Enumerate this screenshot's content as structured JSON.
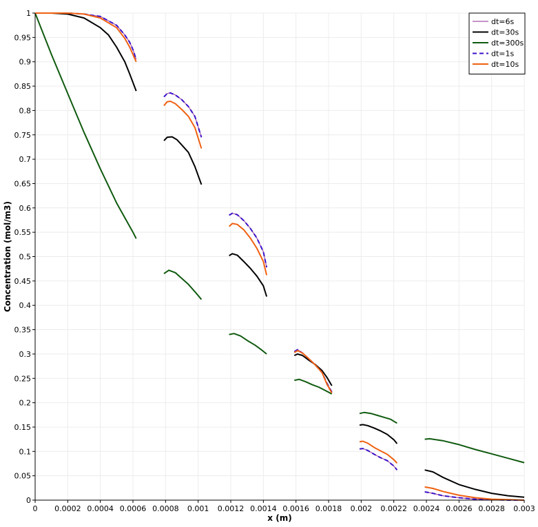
{
  "chart_data": {
    "type": "line",
    "xlabel": "x (m)",
    "ylabel": "Concentration (mol/m3)",
    "xlim": [
      0,
      0.003
    ],
    "ylim": [
      0,
      1
    ],
    "x_ticks": [
      "0",
      "0.0002",
      "0.0004",
      "0.0006",
      "0.0008",
      "0.001",
      "0.0012",
      "0.0014",
      "0.0016",
      "0.0018",
      "0.002",
      "0.0022",
      "0.0024",
      "0.0026",
      "0.0028",
      "0.003"
    ],
    "y_ticks": [
      "0",
      "0.05",
      "0.1",
      "0.15",
      "0.2",
      "0.25",
      "0.3",
      "0.35",
      "0.4",
      "0.45",
      "0.5",
      "0.55",
      "0.6",
      "0.65",
      "0.7",
      "0.75",
      "0.8",
      "0.85",
      "0.9",
      "0.95",
      "1"
    ],
    "grid": true,
    "legend_position": "top-right",
    "series": [
      {
        "name": "dt=6s",
        "color": "#a050a8",
        "style": "solid",
        "segments": [
          [
            [
              0,
              1
            ],
            [
              0.0002,
              1
            ],
            [
              0.0003,
              0.998
            ],
            [
              0.0004,
              0.993
            ],
            [
              0.0005,
              0.975
            ],
            [
              0.00055,
              0.955
            ],
            [
              0.00058,
              0.94
            ],
            [
              0.0006,
              0.925
            ],
            [
              0.00062,
              0.905
            ]
          ],
          [
            [
              0.00079,
              0.828
            ],
            [
              0.00081,
              0.835
            ],
            [
              0.00083,
              0.836
            ],
            [
              0.00086,
              0.832
            ],
            [
              0.0009,
              0.822
            ],
            [
              0.00094,
              0.808
            ],
            [
              0.00098,
              0.788
            ],
            [
              0.00102,
              0.745
            ]
          ],
          [
            [
              0.00119,
              0.585
            ],
            [
              0.00121,
              0.589
            ],
            [
              0.00124,
              0.586
            ],
            [
              0.00128,
              0.574
            ],
            [
              0.00132,
              0.558
            ],
            [
              0.00136,
              0.538
            ],
            [
              0.0014,
              0.51
            ],
            [
              0.00142,
              0.478
            ]
          ],
          [
            [
              0.00159,
              0.305
            ],
            [
              0.00161,
              0.309
            ],
            [
              0.00164,
              0.302
            ],
            [
              0.00168,
              0.29
            ],
            [
              0.00172,
              0.277
            ],
            [
              0.00176,
              0.262
            ],
            [
              0.00179,
              0.24
            ],
            [
              0.00182,
              0.222
            ]
          ],
          [
            [
              0.00199,
              0.105
            ],
            [
              0.00201,
              0.106
            ],
            [
              0.00204,
              0.102
            ],
            [
              0.00208,
              0.094
            ],
            [
              0.00212,
              0.087
            ],
            [
              0.00216,
              0.081
            ],
            [
              0.0022,
              0.07
            ],
            [
              0.00222,
              0.062
            ]
          ],
          [
            [
              0.00239,
              0.017
            ],
            [
              0.00244,
              0.014
            ],
            [
              0.0025,
              0.009
            ],
            [
              0.0026,
              0.005
            ],
            [
              0.0027,
              0.002
            ],
            [
              0.0028,
              0.001
            ],
            [
              0.0029,
              0
            ],
            [
              0.003,
              0
            ]
          ]
        ]
      },
      {
        "name": "dt=30s",
        "color": "#000000",
        "style": "solid",
        "segments": [
          [
            [
              0,
              1
            ],
            [
              0.0001,
              1
            ],
            [
              0.0002,
              0.998
            ],
            [
              0.0003,
              0.99
            ],
            [
              0.0004,
              0.97
            ],
            [
              0.00045,
              0.955
            ],
            [
              0.0005,
              0.93
            ],
            [
              0.00055,
              0.9
            ],
            [
              0.00058,
              0.875
            ],
            [
              0.00062,
              0.84
            ]
          ],
          [
            [
              0.00079,
              0.738
            ],
            [
              0.00081,
              0.745
            ],
            [
              0.00084,
              0.746
            ],
            [
              0.00087,
              0.74
            ],
            [
              0.0009,
              0.729
            ],
            [
              0.00094,
              0.714
            ],
            [
              0.00098,
              0.685
            ],
            [
              0.00102,
              0.648
            ]
          ],
          [
            [
              0.00119,
              0.502
            ],
            [
              0.00121,
              0.506
            ],
            [
              0.00124,
              0.503
            ],
            [
              0.00128,
              0.49
            ],
            [
              0.00132,
              0.476
            ],
            [
              0.00136,
              0.46
            ],
            [
              0.0014,
              0.44
            ],
            [
              0.00142,
              0.418
            ]
          ],
          [
            [
              0.00159,
              0.297
            ],
            [
              0.00161,
              0.3
            ],
            [
              0.00164,
              0.297
            ],
            [
              0.00168,
              0.287
            ],
            [
              0.00172,
              0.278
            ],
            [
              0.00176,
              0.266
            ],
            [
              0.00179,
              0.252
            ],
            [
              0.00182,
              0.235
            ]
          ],
          [
            [
              0.00199,
              0.154
            ],
            [
              0.00201,
              0.155
            ],
            [
              0.00204,
              0.153
            ],
            [
              0.00208,
              0.148
            ],
            [
              0.00212,
              0.142
            ],
            [
              0.00216,
              0.135
            ],
            [
              0.0022,
              0.124
            ],
            [
              0.00222,
              0.116
            ]
          ],
          [
            [
              0.00239,
              0.062
            ],
            [
              0.00244,
              0.058
            ],
            [
              0.0025,
              0.047
            ],
            [
              0.0026,
              0.032
            ],
            [
              0.0027,
              0.022
            ],
            [
              0.0028,
              0.014
            ],
            [
              0.0029,
              0.009
            ],
            [
              0.003,
              0.006
            ]
          ]
        ]
      },
      {
        "name": "dt=300s",
        "color": "#0f5a0f",
        "style": "solid",
        "segments": [
          [
            [
              0,
              1
            ],
            [
              0.0001,
              0.915
            ],
            [
              0.0002,
              0.835
            ],
            [
              0.0003,
              0.755
            ],
            [
              0.0004,
              0.68
            ],
            [
              0.0005,
              0.61
            ],
            [
              0.0006,
              0.55
            ],
            [
              0.00062,
              0.537
            ]
          ],
          [
            [
              0.00079,
              0.465
            ],
            [
              0.00082,
              0.472
            ],
            [
              0.00086,
              0.467
            ],
            [
              0.0009,
              0.455
            ],
            [
              0.00094,
              0.443
            ],
            [
              0.00098,
              0.428
            ],
            [
              0.00102,
              0.412
            ]
          ],
          [
            [
              0.00119,
              0.34
            ],
            [
              0.00122,
              0.342
            ],
            [
              0.00126,
              0.337
            ],
            [
              0.0013,
              0.328
            ],
            [
              0.00135,
              0.318
            ],
            [
              0.00139,
              0.308
            ],
            [
              0.00142,
              0.3
            ]
          ],
          [
            [
              0.00159,
              0.246
            ],
            [
              0.00162,
              0.248
            ],
            [
              0.00166,
              0.243
            ],
            [
              0.0017,
              0.237
            ],
            [
              0.00174,
              0.232
            ],
            [
              0.00178,
              0.225
            ],
            [
              0.00182,
              0.218
            ]
          ],
          [
            [
              0.00199,
              0.178
            ],
            [
              0.00202,
              0.18
            ],
            [
              0.00206,
              0.178
            ],
            [
              0.0021,
              0.174
            ],
            [
              0.00214,
              0.17
            ],
            [
              0.00218,
              0.166
            ],
            [
              0.00222,
              0.158
            ]
          ],
          [
            [
              0.00239,
              0.125
            ],
            [
              0.00242,
              0.126
            ],
            [
              0.0025,
              0.122
            ],
            [
              0.0026,
              0.114
            ],
            [
              0.0027,
              0.104
            ],
            [
              0.0028,
              0.095
            ],
            [
              0.0029,
              0.086
            ],
            [
              0.003,
              0.077
            ]
          ]
        ]
      },
      {
        "name": "dt=1s",
        "color": "#3a10c8",
        "style": "dashed",
        "segments": [
          [
            [
              0,
              1
            ],
            [
              0.0002,
              1
            ],
            [
              0.0003,
              0.998
            ],
            [
              0.0004,
              0.993
            ],
            [
              0.0005,
              0.975
            ],
            [
              0.00055,
              0.955
            ],
            [
              0.00058,
              0.94
            ],
            [
              0.0006,
              0.925
            ],
            [
              0.00062,
              0.905
            ]
          ],
          [
            [
              0.00079,
              0.828
            ],
            [
              0.00081,
              0.835
            ],
            [
              0.00083,
              0.836
            ],
            [
              0.00086,
              0.832
            ],
            [
              0.0009,
              0.822
            ],
            [
              0.00094,
              0.808
            ],
            [
              0.00098,
              0.788
            ],
            [
              0.00102,
              0.745
            ]
          ],
          [
            [
              0.00119,
              0.585
            ],
            [
              0.00121,
              0.589
            ],
            [
              0.00124,
              0.586
            ],
            [
              0.00128,
              0.574
            ],
            [
              0.00132,
              0.558
            ],
            [
              0.00136,
              0.538
            ],
            [
              0.0014,
              0.51
            ],
            [
              0.00142,
              0.478
            ]
          ],
          [
            [
              0.00159,
              0.305
            ],
            [
              0.00161,
              0.309
            ],
            [
              0.00164,
              0.302
            ],
            [
              0.00168,
              0.29
            ],
            [
              0.00172,
              0.277
            ],
            [
              0.00176,
              0.262
            ],
            [
              0.00179,
              0.24
            ],
            [
              0.00182,
              0.222
            ]
          ],
          [
            [
              0.00199,
              0.105
            ],
            [
              0.00201,
              0.106
            ],
            [
              0.00204,
              0.102
            ],
            [
              0.00208,
              0.094
            ],
            [
              0.00212,
              0.087
            ],
            [
              0.00216,
              0.081
            ],
            [
              0.0022,
              0.07
            ],
            [
              0.00222,
              0.062
            ]
          ],
          [
            [
              0.00239,
              0.017
            ],
            [
              0.00244,
              0.014
            ],
            [
              0.0025,
              0.009
            ],
            [
              0.0026,
              0.005
            ],
            [
              0.0027,
              0.002
            ],
            [
              0.0028,
              0.001
            ],
            [
              0.0029,
              0
            ],
            [
              0.003,
              0
            ]
          ]
        ]
      },
      {
        "name": "dt=10s",
        "color": "#f06010",
        "style": "solid",
        "segments": [
          [
            [
              0,
              1
            ],
            [
              0.0002,
              1
            ],
            [
              0.0003,
              0.998
            ],
            [
              0.0004,
              0.99
            ],
            [
              0.0005,
              0.97
            ],
            [
              0.00055,
              0.948
            ],
            [
              0.00058,
              0.93
            ],
            [
              0.0006,
              0.915
            ],
            [
              0.00062,
              0.9
            ]
          ],
          [
            [
              0.00079,
              0.81
            ],
            [
              0.00081,
              0.818
            ],
            [
              0.00083,
              0.819
            ],
            [
              0.00086,
              0.814
            ],
            [
              0.0009,
              0.802
            ],
            [
              0.00094,
              0.788
            ],
            [
              0.00098,
              0.765
            ],
            [
              0.00102,
              0.722
            ]
          ],
          [
            [
              0.00119,
              0.562
            ],
            [
              0.00121,
              0.568
            ],
            [
              0.00124,
              0.566
            ],
            [
              0.00128,
              0.555
            ],
            [
              0.00132,
              0.538
            ],
            [
              0.00136,
              0.517
            ],
            [
              0.0014,
              0.49
            ],
            [
              0.00142,
              0.462
            ]
          ],
          [
            [
              0.00159,
              0.303
            ],
            [
              0.00161,
              0.307
            ],
            [
              0.00164,
              0.302
            ],
            [
              0.00168,
              0.29
            ],
            [
              0.00172,
              0.277
            ],
            [
              0.00176,
              0.262
            ],
            [
              0.00179,
              0.238
            ],
            [
              0.00182,
              0.22
            ]
          ],
          [
            [
              0.00199,
              0.12
            ],
            [
              0.00201,
              0.121
            ],
            [
              0.00204,
              0.117
            ],
            [
              0.00208,
              0.108
            ],
            [
              0.00212,
              0.101
            ],
            [
              0.00216,
              0.094
            ],
            [
              0.0022,
              0.083
            ],
            [
              0.00222,
              0.076
            ]
          ],
          [
            [
              0.00239,
              0.027
            ],
            [
              0.00244,
              0.024
            ],
            [
              0.0025,
              0.018
            ],
            [
              0.0026,
              0.01
            ],
            [
              0.0027,
              0.005
            ],
            [
              0.0028,
              0.002
            ],
            [
              0.0029,
              0.001
            ],
            [
              0.003,
              0
            ]
          ]
        ]
      }
    ]
  }
}
